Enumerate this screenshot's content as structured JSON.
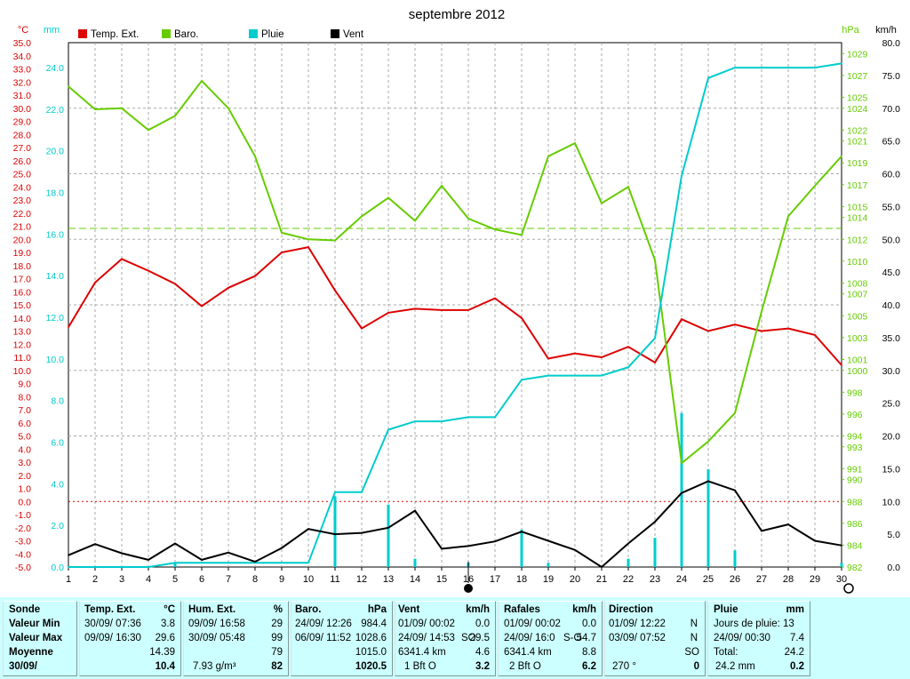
{
  "chart_data": {
    "type": "line",
    "title": "septembre 2012",
    "x": [
      1,
      2,
      3,
      4,
      5,
      6,
      7,
      8,
      9,
      10,
      11,
      12,
      13,
      14,
      15,
      16,
      17,
      18,
      19,
      20,
      21,
      22,
      23,
      24,
      25,
      26,
      27,
      28,
      29,
      30
    ],
    "xlim": [
      1,
      30
    ],
    "axes": {
      "temp": {
        "unit": "°C",
        "lim": [
          -5,
          35
        ],
        "ticks": [
          -5,
          -4,
          -3,
          -2,
          -1,
          0,
          1,
          2,
          3,
          4,
          5,
          6,
          7,
          8,
          9,
          10,
          11,
          12,
          13,
          14,
          15,
          16,
          17,
          18,
          19,
          20,
          21,
          22,
          23,
          24,
          25,
          26,
          27,
          28,
          29,
          30,
          31,
          32,
          33,
          34,
          35
        ],
        "tick_labels": [
          "-5.0",
          "-4.0",
          "-3.0",
          "-2.0",
          "-1.0",
          "0.0",
          "1.0",
          "2.0",
          "3.0",
          "4.0",
          "5.0",
          "6.0",
          "7.0",
          "8.0",
          "9.0",
          "10.0",
          "11.0",
          "12.0",
          "13.0",
          "14.0",
          "15.0",
          "16.0",
          "17.0",
          "18.0",
          "19.0",
          "20.0",
          "21.0",
          "22.0",
          "23.0",
          "24.0",
          "25.0",
          "26.0",
          "27.0",
          "28.0",
          "29.0",
          "30.0",
          "31.0",
          "32.0",
          "33.0",
          "34.0",
          "35.0"
        ],
        "color": "#dd0000"
      },
      "rain": {
        "unit": "mm",
        "lim": [
          0,
          25.2
        ],
        "ticks": [
          0,
          2,
          4,
          6,
          8,
          10,
          12,
          14,
          16,
          18,
          20,
          22,
          24
        ],
        "tick_labels": [
          "0.0",
          "2.0",
          "4.0",
          "6.0",
          "8.0",
          "10.0",
          "12.0",
          "14.0",
          "16.0",
          "18.0",
          "20.0",
          "22.0",
          "24.0"
        ],
        "color": "#00cccc"
      },
      "baro": {
        "unit": "hPa",
        "lim": [
          982,
          1030
        ],
        "ticks": [
          982,
          984,
          986,
          988,
          990,
          991,
          993,
          994,
          996,
          998,
          1000,
          1001,
          1003,
          1005,
          1007,
          1008,
          1010,
          1012,
          1014,
          1015,
          1017,
          1019,
          1021,
          1022,
          1024,
          1025,
          1027,
          1029
        ],
        "tick_labels": [
          "982",
          "984",
          "986",
          "988",
          "990",
          "991",
          "993",
          "994",
          "996",
          "998",
          "1000",
          "1001",
          "1003",
          "1005",
          "1007",
          "1008",
          "1010",
          "1012",
          "1014",
          "1015",
          "1017",
          "1019",
          "1021",
          "1022",
          "1024",
          "1025",
          "1027",
          "1029"
        ],
        "color": "#66cc00"
      },
      "wind": {
        "unit": "km/h",
        "lim": [
          0,
          80
        ],
        "ticks": [
          0,
          5,
          10,
          15,
          20,
          25,
          30,
          35,
          40,
          45,
          50,
          55,
          60,
          65,
          70,
          75,
          80
        ],
        "tick_labels": [
          "0.0",
          "5.0",
          "10.0",
          "15.0",
          "20.0",
          "25.0",
          "30.0",
          "35.0",
          "40.0",
          "45.0",
          "50.0",
          "55.0",
          "60.0",
          "65.0",
          "70.0",
          "75.0",
          "80.0"
        ],
        "color": "#000000"
      }
    },
    "baro_reference": 1013,
    "series": [
      {
        "name": "Temp. Ext.",
        "axis": "temp",
        "color": "#dd0000",
        "values": [
          13.3,
          16.7,
          18.5,
          17.6,
          16.6,
          14.9,
          16.3,
          17.2,
          19.0,
          19.4,
          16.1,
          13.2,
          14.4,
          14.7,
          14.6,
          14.6,
          15.5,
          14.0,
          10.9,
          11.3,
          11.0,
          11.8,
          10.6,
          13.9,
          13.0,
          13.5,
          13.0,
          13.2,
          12.7,
          10.4
        ]
      },
      {
        "name": "Baro.",
        "axis": "baro",
        "color": "#66cc00",
        "values": [
          1026.0,
          1023.9,
          1024.0,
          1022.0,
          1023.3,
          1026.5,
          1024.0,
          1019.6,
          1012.6,
          1012.0,
          1011.9,
          1014.1,
          1015.8,
          1013.7,
          1016.9,
          1013.9,
          1012.9,
          1012.4,
          1019.6,
          1020.8,
          1015.3,
          1016.8,
          1010.1,
          991.5,
          993.5,
          996.1,
          1005.4,
          1014.1,
          1016.9,
          1019.6
        ]
      },
      {
        "name": "Pluie",
        "axis": "rain",
        "color": "#00cccc",
        "values": [
          0,
          0,
          0,
          0,
          0.2,
          0.2,
          0.2,
          0.2,
          0.2,
          0.2,
          3.6,
          3.6,
          6.6,
          7.0,
          7.0,
          7.2,
          7.2,
          9.0,
          9.2,
          9.2,
          9.2,
          9.6,
          11.0,
          18.8,
          23.5,
          24.0,
          24.0,
          24.0,
          24.0,
          24.2
        ]
      },
      {
        "name": "Vent",
        "axis": "wind",
        "color": "#000000",
        "values": [
          1.8,
          3.5,
          2.1,
          1.1,
          3.6,
          1.1,
          2.2,
          0.8,
          2.9,
          5.8,
          5.0,
          5.2,
          6.0,
          8.6,
          2.8,
          3.2,
          3.9,
          5.4,
          4.0,
          2.6,
          0.0,
          3.6,
          6.9,
          11.3,
          13.1,
          11.7,
          5.5,
          6.5,
          4.0,
          3.3
        ]
      }
    ],
    "rain_daily": {
      "name": "Pluie",
      "axis": "rain",
      "color": "#00cccc",
      "values": [
        0,
        0,
        0,
        0,
        0.2,
        0,
        0,
        0,
        0,
        0,
        3.4,
        0,
        3.0,
        0.4,
        0,
        0.2,
        0,
        1.8,
        0.2,
        0,
        0,
        0.4,
        1.4,
        7.4,
        4.7,
        0.8,
        0,
        0,
        0,
        0.2
      ]
    },
    "markers": [
      {
        "x": 16,
        "label": "new-moon-icon"
      },
      {
        "x": 30,
        "label": "full-moon-icon"
      }
    ],
    "legend": "top-left"
  },
  "panel": {
    "sonde": {
      "h": "Sonde",
      "min": "Valeur Min",
      "max": "Valeur Max",
      "moy": "Moyenne",
      "date": "30/09/"
    },
    "temp": {
      "h": "Temp. Ext.",
      "u": "°C",
      "min_dt": "30/09/  07:36",
      "min_v": "3.8",
      "max_dt": "09/09/  16:30",
      "max_v": "29.6",
      "moy": "14.39",
      "cur": "10.4"
    },
    "hum": {
      "h": "Hum. Ext.",
      "u": "%",
      "min_dt": "09/09/  16:58",
      "min_v": "29",
      "max_dt": "30/09/  05:48",
      "max_v": "99",
      "moy": "79",
      "extra": "7.93 g/m³",
      "cur": "82"
    },
    "baro": {
      "h": "Baro.",
      "u": "hPa",
      "min_dt": "24/09/  12:26",
      "min_v": "984.4",
      "max_dt": "06/09/  11:52",
      "max_v": "1028.6",
      "moy": "1015.0",
      "cur": "1020.5"
    },
    "vent": {
      "h": "Vent",
      "u": "km/h",
      "min_dt": "01/09/  00:02",
      "min_v": "0.0",
      "max_dt": "24/09/  14:53",
      "max_dir": "SO",
      "max_v": "29.5",
      "dist": "6341.4 km",
      "moy": "4.6",
      "bft": "1 Bft O",
      "cur": "3.2"
    },
    "raf": {
      "h": "Rafales",
      "u": "km/h",
      "min_dt": "01/09/  00:02",
      "min_v": "0.0",
      "max_dt": "24/09/  16:0",
      "max_dir": "S-O",
      "max_v": "54.7",
      "dist": "6341.4 km",
      "moy": "8.8",
      "bft": "2 Bft O",
      "cur": "6.2"
    },
    "dir": {
      "h": "Direction",
      "min_dt": "01/09/  12:22",
      "min_v": "N",
      "max_dt": "03/09/  07:52",
      "max_v": "N",
      "moy": "SO",
      "deg": "270 °",
      "cur": "0"
    },
    "pluie": {
      "h": "Pluie",
      "u": "mm",
      "days": "Jours de pluie: 13",
      "max_dt": "24/09/  00:30",
      "max_v": "7.4",
      "tot_l": "Total:",
      "tot_v": "24.2",
      "extra": "24.2 mm",
      "cur": "0.2"
    }
  }
}
